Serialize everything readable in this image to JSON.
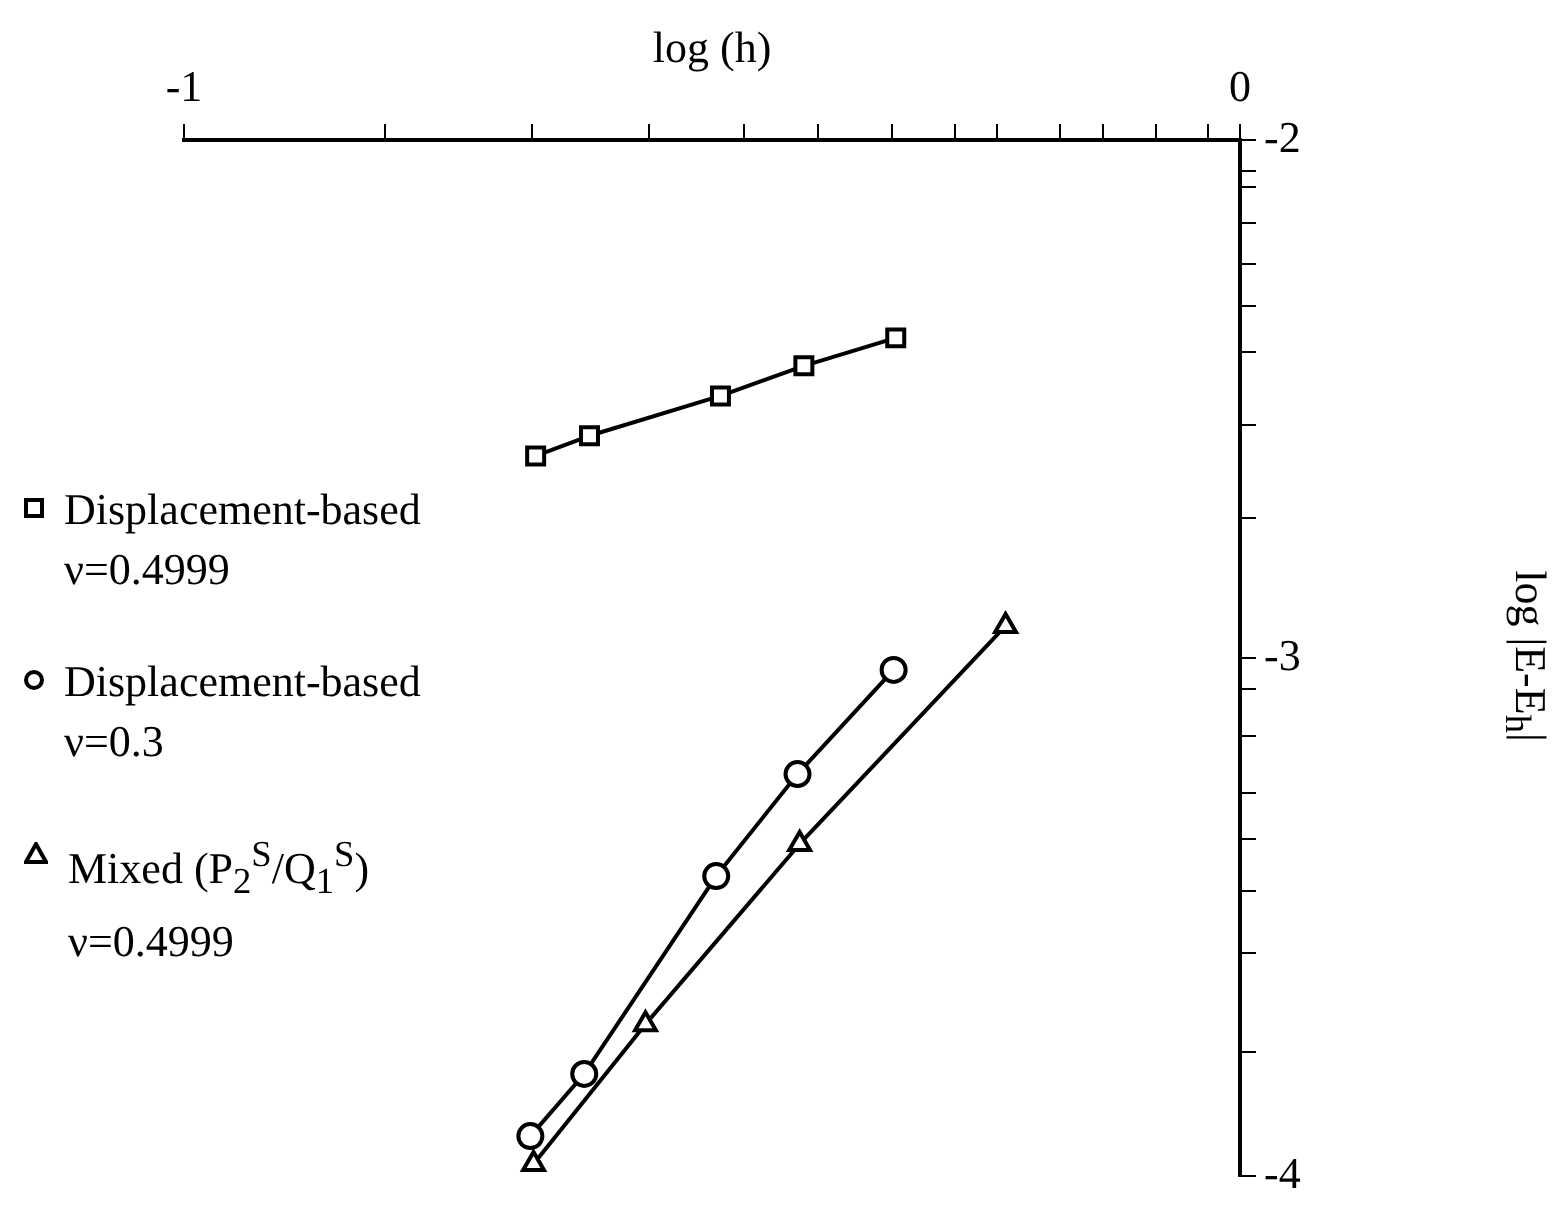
{
  "chart_data": {
    "type": "line",
    "xlabel": "log (h)",
    "ylabel": "log |E-E$_{h}$|",
    "xlim": [
      -1,
      0
    ],
    "xticks": [
      -1,
      {
        "value": -0.81,
        "label": null
      },
      {
        "value": -0.67,
        "label": null
      },
      {
        "value": -0.56,
        "label": null
      },
      {
        "value": -0.47,
        "label": null
      },
      {
        "value": -0.4,
        "label": null
      },
      {
        "value": -0.33,
        "label": null
      },
      {
        "value": -0.27,
        "label": null
      },
      {
        "value": -0.23,
        "label": null
      },
      {
        "value": -0.17,
        "label": null
      },
      {
        "value": -0.13,
        "label": null
      },
      {
        "value": -0.08,
        "label": null
      },
      {
        "value": -0.03,
        "label": null
      },
      0
    ],
    "ylim": [
      -4,
      -2
    ],
    "yticks": [
      -2,
      {
        "value": -2.06,
        "label": null
      },
      {
        "value": -2.09,
        "label": null
      },
      {
        "value": -2.16,
        "label": null
      },
      {
        "value": -2.24,
        "label": null
      },
      {
        "value": -2.32,
        "label": null
      },
      {
        "value": -2.41,
        "label": null
      },
      {
        "value": -2.55,
        "label": null
      },
      {
        "value": -2.73,
        "label": null
      },
      -3,
      {
        "value": -3.06,
        "label": null
      },
      {
        "value": -3.15,
        "label": null
      },
      {
        "value": -3.26,
        "label": null
      },
      {
        "value": -3.35,
        "label": null
      },
      {
        "value": -3.45,
        "label": null
      },
      {
        "value": -3.57,
        "label": null
      },
      {
        "value": -3.76,
        "label": null
      },
      -4
    ],
    "grid": false,
    "legend": "left",
    "line_style": "solid",
    "series": [
      {
        "name": "Displacement-based\nν=0.4999",
        "color": "#000000",
        "marker": "square",
        "x": [
          -0.667,
          -0.616,
          -0.492,
          -0.413,
          -0.326
        ],
        "values": [
          -2.61,
          -2.571,
          -2.494,
          -2.436,
          -2.382
        ]
      },
      {
        "name": "Displacement-based\nν=0.3",
        "color": "#000000",
        "marker": "circle",
        "x": [
          -0.672,
          -0.621,
          -0.496,
          -0.419,
          -0.328
        ],
        "values": [
          -3.923,
          -3.803,
          -3.421,
          -3.224,
          -3.023
        ]
      },
      {
        "name": "Mixed (P$_{2}$$^{S}$/Q$_{1}$$^{S}$)\nν=0.4999",
        "color": "#000000",
        "marker": "triangle",
        "x": [
          -0.669,
          -0.563,
          -0.417,
          -0.222
        ],
        "values": [
          -3.977,
          -3.707,
          -3.359,
          -2.938
        ]
      }
    ]
  }
}
